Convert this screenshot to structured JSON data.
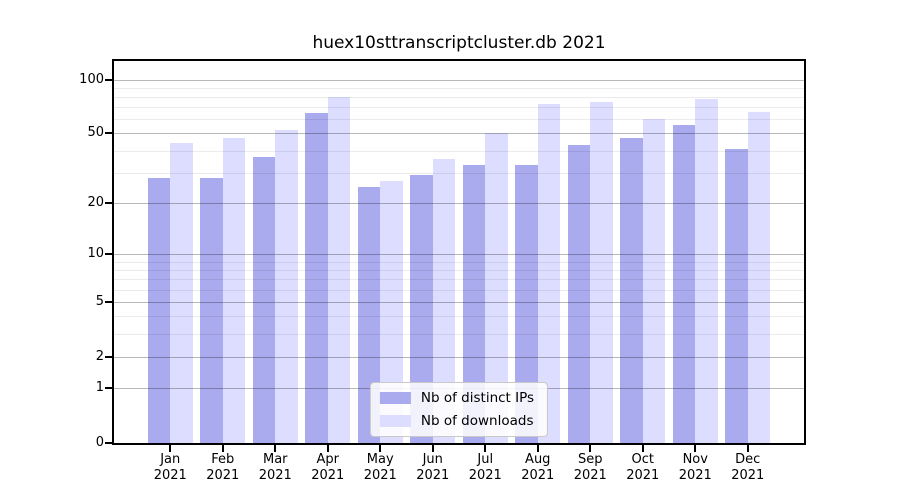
{
  "chart_data": {
    "type": "bar",
    "title": "huex10sttranscriptcluster.db 2021",
    "categories": [
      "Jan",
      "Feb",
      "Mar",
      "Apr",
      "May",
      "Jun",
      "Jul",
      "Aug",
      "Sep",
      "Oct",
      "Nov",
      "Dec"
    ],
    "x_year_label": "2021",
    "series": [
      {
        "name": "Nb of distinct IPs",
        "color": "#aaaaee",
        "values": [
          28,
          28,
          37,
          65,
          25,
          29,
          33,
          33,
          43,
          47,
          56,
          41
        ]
      },
      {
        "name": "Nb of downloads",
        "color": "#ddddff",
        "values": [
          44,
          47,
          52,
          80,
          27,
          36,
          50,
          73,
          75,
          60,
          78,
          66
        ]
      }
    ],
    "xlabel": "",
    "ylabel": "",
    "yscale": "log1p",
    "ylim": [
      0,
      127
    ],
    "yticks": [
      0,
      1,
      2,
      5,
      10,
      20,
      50,
      100
    ],
    "minor_yticks": [
      3,
      4,
      6,
      7,
      8,
      9,
      30,
      40,
      60,
      70,
      80,
      90
    ],
    "grid": "on",
    "grid_above_bars": true,
    "legend_position": "bottom-center",
    "frame_color": "#000000",
    "background_color": "#ffffff"
  }
}
